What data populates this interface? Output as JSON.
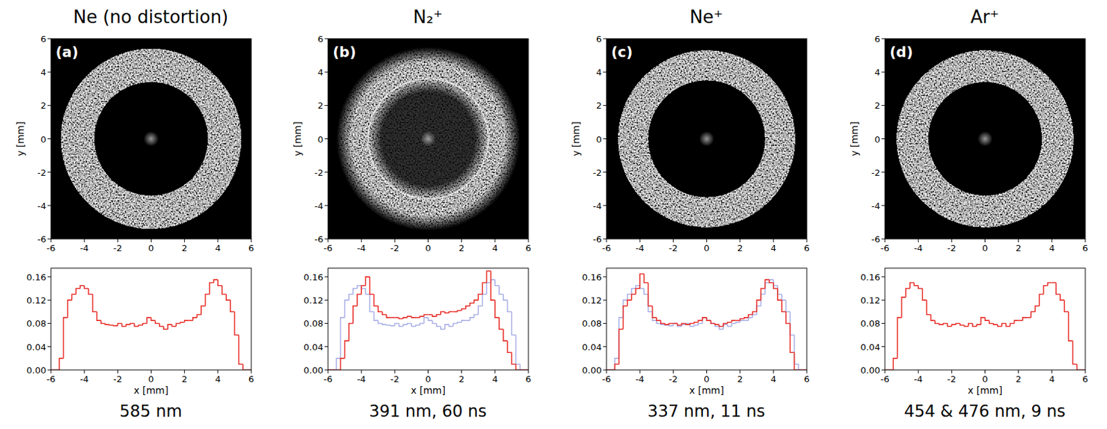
{
  "chart_data": [
    {
      "type": "histogram",
      "title": "Ne (no distortion)",
      "annotation": "585 nm",
      "panel_label": "(a)",
      "image": {
        "xlim": [
          -6,
          6
        ],
        "ylim": [
          -6,
          6
        ],
        "xticks": [
          -6,
          -4,
          -2,
          0,
          2,
          4,
          6
        ],
        "yticks": [
          -6,
          -4,
          -2,
          0,
          2,
          4,
          6
        ],
        "ylabel": "y [mm]",
        "inner_radius": 3.4,
        "outer_radius": 5.4
      },
      "xlim": [
        -6,
        6
      ],
      "ylim": [
        0,
        0.175
      ],
      "xticks": [
        -6,
        -4,
        -2,
        0,
        2,
        4,
        6
      ],
      "yticks": [
        {
          "value": 0,
          "label": "0.00"
        },
        0.04,
        0.08,
        0.12,
        0.16
      ],
      "xlabel": "x [mm]",
      "bins": [
        -6,
        -5.75,
        -5.5,
        -5.25,
        -5,
        -4.75,
        -4.5,
        -4.25,
        -4,
        -3.75,
        -3.5,
        -3.25,
        -3,
        -2.75,
        -2.5,
        -2.25,
        -2,
        -1.75,
        -1.5,
        -1.25,
        -1,
        -0.75,
        -0.5,
        -0.25,
        0,
        0.25,
        0.5,
        0.75,
        1,
        1.25,
        1.5,
        1.75,
        2,
        2.25,
        2.5,
        2.75,
        3,
        3.25,
        3.5,
        3.75,
        4,
        4.25,
        4.5,
        4.75,
        5,
        5.25,
        5.5,
        5.75,
        6
      ],
      "series": [
        {
          "color": "#e8302a",
          "values": [
            0,
            0,
            0.02,
            0.09,
            0.12,
            0.13,
            0.14,
            0.145,
            0.14,
            0.13,
            0.1,
            0.085,
            0.08,
            0.078,
            0.077,
            0.076,
            0.08,
            0.075,
            0.078,
            0.08,
            0.075,
            0.077,
            0.08,
            0.09,
            0.085,
            0.08,
            0.075,
            0.07,
            0.078,
            0.075,
            0.08,
            0.082,
            0.085,
            0.085,
            0.09,
            0.095,
            0.11,
            0.13,
            0.15,
            0.155,
            0.145,
            0.13,
            0.12,
            0.1,
            0.06,
            0.01,
            0,
            0
          ]
        }
      ]
    },
    {
      "type": "histogram",
      "title": "N₂⁺",
      "annotation": "391 nm, 60 ns",
      "panel_label": "(b)",
      "image": {
        "xlim": [
          -6,
          6
        ],
        "ylim": [
          -6,
          6
        ],
        "xticks": [
          -6,
          -4,
          -2,
          0,
          2,
          4,
          6
        ],
        "yticks": [
          -6,
          -4,
          -2,
          0,
          2,
          4,
          6
        ],
        "ylabel": "y [mm]",
        "inner_radius": 3.3,
        "outer_radius": 5.2,
        "bright_radius": 3.6
      },
      "xlim": [
        -6,
        6
      ],
      "ylim": [
        0,
        0.175
      ],
      "xticks": [
        -6,
        -4,
        -2,
        0,
        2,
        4,
        6
      ],
      "yticks": [
        {
          "value": 0,
          "label": "0.00"
        },
        0.04,
        0.08,
        0.12,
        0.16
      ],
      "xlabel": "x [mm]",
      "bins": [
        -6,
        -5.75,
        -5.5,
        -5.25,
        -5,
        -4.75,
        -4.5,
        -4.25,
        -4,
        -3.75,
        -3.5,
        -3.25,
        -3,
        -2.75,
        -2.5,
        -2.25,
        -2,
        -1.75,
        -1.5,
        -1.25,
        -1,
        -0.75,
        -0.5,
        -0.25,
        0,
        0.25,
        0.5,
        0.75,
        1,
        1.25,
        1.5,
        1.75,
        2,
        2.25,
        2.5,
        2.75,
        3,
        3.25,
        3.5,
        3.75,
        4,
        4.25,
        4.5,
        4.75,
        5,
        5.25,
        5.5,
        5.75,
        6
      ],
      "series": [
        {
          "color": "#aab0e6",
          "values": [
            0,
            0,
            0.02,
            0.09,
            0.12,
            0.13,
            0.14,
            0.145,
            0.14,
            0.13,
            0.1,
            0.085,
            0.08,
            0.078,
            0.077,
            0.076,
            0.08,
            0.075,
            0.078,
            0.08,
            0.075,
            0.077,
            0.08,
            0.09,
            0.085,
            0.08,
            0.075,
            0.07,
            0.078,
            0.075,
            0.08,
            0.082,
            0.085,
            0.085,
            0.09,
            0.095,
            0.11,
            0.13,
            0.15,
            0.155,
            0.145,
            0.13,
            0.12,
            0.1,
            0.06,
            0.01,
            0,
            0
          ]
        },
        {
          "color": "#e8302a",
          "values": [
            0,
            0,
            0,
            0.02,
            0.05,
            0.08,
            0.11,
            0.13,
            0.145,
            0.16,
            0.13,
            0.11,
            0.1,
            0.095,
            0.09,
            0.09,
            0.09,
            0.088,
            0.09,
            0.092,
            0.09,
            0.09,
            0.092,
            0.095,
            0.095,
            0.092,
            0.095,
            0.1,
            0.098,
            0.1,
            0.1,
            0.102,
            0.105,
            0.11,
            0.115,
            0.12,
            0.13,
            0.15,
            0.17,
            0.12,
            0.09,
            0.07,
            0.05,
            0.03,
            0.01,
            0,
            0,
            0
          ]
        }
      ]
    },
    {
      "type": "histogram",
      "title": "Ne⁺",
      "annotation": "337 nm, 11 ns",
      "panel_label": "(c)",
      "image": {
        "xlim": [
          -6,
          6
        ],
        "ylim": [
          -6,
          6
        ],
        "xticks": [
          -6,
          -4,
          -2,
          0,
          2,
          4,
          6
        ],
        "yticks": [
          -6,
          -4,
          -2,
          0,
          2,
          4,
          6
        ],
        "ylabel": "y [mm]",
        "inner_radius": 3.5,
        "outer_radius": 5.3
      },
      "xlim": [
        -6,
        6
      ],
      "ylim": [
        0,
        0.175
      ],
      "xticks": [
        -6,
        -4,
        -2,
        0,
        2,
        4,
        6
      ],
      "yticks": [
        {
          "value": 0,
          "label": "0.00"
        },
        0.04,
        0.08,
        0.12,
        0.16
      ],
      "xlabel": "x [mm]",
      "bins": [
        -6,
        -5.75,
        -5.5,
        -5.25,
        -5,
        -4.75,
        -4.5,
        -4.25,
        -4,
        -3.75,
        -3.5,
        -3.25,
        -3,
        -2.75,
        -2.5,
        -2.25,
        -2,
        -1.75,
        -1.5,
        -1.25,
        -1,
        -0.75,
        -0.5,
        -0.25,
        0,
        0.25,
        0.5,
        0.75,
        1,
        1.25,
        1.5,
        1.75,
        2,
        2.25,
        2.5,
        2.75,
        3,
        3.25,
        3.5,
        3.75,
        4,
        4.25,
        4.5,
        4.75,
        5,
        5.25,
        5.5,
        5.75,
        6
      ],
      "series": [
        {
          "color": "#aab0e6",
          "values": [
            0,
            0,
            0.02,
            0.09,
            0.12,
            0.13,
            0.14,
            0.145,
            0.14,
            0.13,
            0.1,
            0.085,
            0.08,
            0.078,
            0.077,
            0.076,
            0.08,
            0.075,
            0.078,
            0.08,
            0.075,
            0.077,
            0.08,
            0.09,
            0.085,
            0.08,
            0.075,
            0.07,
            0.078,
            0.075,
            0.08,
            0.082,
            0.085,
            0.085,
            0.09,
            0.095,
            0.11,
            0.13,
            0.15,
            0.155,
            0.145,
            0.13,
            0.12,
            0.1,
            0.06,
            0.01,
            0,
            0
          ]
        },
        {
          "color": "#e8302a",
          "values": [
            0,
            0,
            0.01,
            0.07,
            0.11,
            0.12,
            0.13,
            0.14,
            0.165,
            0.15,
            0.11,
            0.09,
            0.085,
            0.08,
            0.078,
            0.08,
            0.08,
            0.077,
            0.08,
            0.078,
            0.08,
            0.082,
            0.085,
            0.09,
            0.085,
            0.08,
            0.078,
            0.075,
            0.08,
            0.082,
            0.085,
            0.085,
            0.088,
            0.09,
            0.095,
            0.1,
            0.12,
            0.14,
            0.155,
            0.15,
            0.14,
            0.12,
            0.1,
            0.08,
            0.03,
            0,
            0,
            0
          ]
        }
      ]
    },
    {
      "type": "histogram",
      "title": "Ar⁺",
      "annotation": "454 & 476 nm, 9 ns",
      "panel_label": "(d)",
      "image": {
        "xlim": [
          -6,
          6
        ],
        "ylim": [
          -6,
          6
        ],
        "xticks": [
          -6,
          -4,
          -2,
          0,
          2,
          4,
          6
        ],
        "yticks": [
          -6,
          -4,
          -2,
          0,
          2,
          4,
          6
        ],
        "ylabel": "y [mm]",
        "inner_radius": 3.4,
        "outer_radius": 5.3
      },
      "xlim": [
        -6,
        6
      ],
      "ylim": [
        0,
        0.175
      ],
      "xticks": [
        -6,
        -4,
        -2,
        0,
        2,
        4,
        6
      ],
      "yticks": [
        {
          "value": 0,
          "label": "0.00"
        },
        0.04,
        0.08,
        0.12,
        0.16
      ],
      "xlabel": "x [mm]",
      "bins": [
        -6,
        -5.75,
        -5.5,
        -5.25,
        -5,
        -4.75,
        -4.5,
        -4.25,
        -4,
        -3.75,
        -3.5,
        -3.25,
        -3,
        -2.75,
        -2.5,
        -2.25,
        -2,
        -1.75,
        -1.5,
        -1.25,
        -1,
        -0.75,
        -0.5,
        -0.25,
        0,
        0.25,
        0.5,
        0.75,
        1,
        1.25,
        1.5,
        1.75,
        2,
        2.25,
        2.5,
        2.75,
        3,
        3.25,
        3.5,
        3.75,
        4,
        4.25,
        4.5,
        4.75,
        5,
        5.25,
        5.5,
        5.75,
        6
      ],
      "series": [
        {
          "color": "#e8302a",
          "values": [
            0,
            0,
            0.02,
            0.09,
            0.125,
            0.14,
            0.15,
            0.145,
            0.14,
            0.12,
            0.095,
            0.085,
            0.08,
            0.078,
            0.08,
            0.075,
            0.078,
            0.08,
            0.077,
            0.075,
            0.08,
            0.075,
            0.078,
            0.09,
            0.085,
            0.08,
            0.078,
            0.075,
            0.08,
            0.075,
            0.08,
            0.085,
            0.085,
            0.09,
            0.09,
            0.1,
            0.11,
            0.13,
            0.145,
            0.15,
            0.15,
            0.13,
            0.12,
            0.1,
            0.05,
            0.01,
            0,
            0
          ]
        }
      ]
    }
  ]
}
